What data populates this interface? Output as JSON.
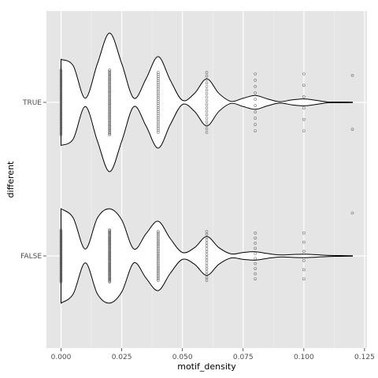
{
  "chart_data": {
    "type": "violin",
    "orientation": "horizontal",
    "xlabel": "motif_density",
    "ylabel": "different",
    "xlim": [
      -0.006,
      0.126
    ],
    "x_ticks": [
      0.0,
      0.025,
      0.05,
      0.075,
      0.1,
      0.125
    ],
    "x_tick_labels": [
      "0.000",
      "0.025",
      "0.050",
      "0.075",
      "0.100",
      "0.125"
    ],
    "categories": [
      "TRUE",
      "FALSE"
    ],
    "grid": true,
    "panel_background": "#e5e5e5",
    "grid_color": "#ffffff",
    "violin_fill": "#ffffff",
    "violin_stroke": "#000000",
    "point_color": "#555555",
    "groups": [
      {
        "category": "TRUE",
        "density_curve": {
          "x": [
            0.0,
            0.005,
            0.01,
            0.015,
            0.02,
            0.025,
            0.03,
            0.035,
            0.04,
            0.045,
            0.05,
            0.055,
            0.06,
            0.065,
            0.07,
            0.075,
            0.08,
            0.085,
            0.09,
            0.095,
            0.1,
            0.105,
            0.11,
            0.115,
            0.12
          ],
          "half_width": [
            0.62,
            0.53,
            0.06,
            0.56,
            1.0,
            0.56,
            0.06,
            0.34,
            0.66,
            0.32,
            0.03,
            0.13,
            0.34,
            0.13,
            0.015,
            0.06,
            0.1,
            0.05,
            0.01,
            0.035,
            0.05,
            0.03,
            0.006,
            0.004,
            0.003
          ]
        },
        "points": [
          {
            "x": 0.0,
            "spread": 0.65,
            "n": 40
          },
          {
            "x": 0.02,
            "spread": 0.65,
            "n": 50
          },
          {
            "x": 0.04,
            "spread": 0.6,
            "n": 30
          },
          {
            "x": 0.06,
            "spread": 0.6,
            "n": 18
          },
          {
            "x": 0.08,
            "spread": 0.57,
            "n": 10
          },
          {
            "x": 0.1,
            "spread": 0.57,
            "n": 6
          },
          {
            "x": 0.12,
            "spread": 0.54,
            "n": 2
          }
        ]
      },
      {
        "category": "FALSE",
        "density_curve": {
          "x": [
            0.0,
            0.005,
            0.01,
            0.015,
            0.02,
            0.025,
            0.03,
            0.035,
            0.04,
            0.045,
            0.05,
            0.055,
            0.06,
            0.065,
            0.07,
            0.075,
            0.08,
            0.085,
            0.09,
            0.095,
            0.1,
            0.105,
            0.11,
            0.115,
            0.12
          ],
          "half_width": [
            0.68,
            0.55,
            0.1,
            0.55,
            0.68,
            0.52,
            0.1,
            0.32,
            0.5,
            0.25,
            0.05,
            0.12,
            0.28,
            0.12,
            0.03,
            0.05,
            0.06,
            0.035,
            0.015,
            0.02,
            0.025,
            0.018,
            0.008,
            0.005,
            0.003
          ]
        },
        "points": [
          {
            "x": 0.0,
            "spread": 0.52,
            "n": 40
          },
          {
            "x": 0.02,
            "spread": 0.52,
            "n": 60
          },
          {
            "x": 0.04,
            "spread": 0.49,
            "n": 30
          },
          {
            "x": 0.06,
            "spread": 0.49,
            "n": 18
          },
          {
            "x": 0.08,
            "spread": 0.46,
            "n": 10
          },
          {
            "x": 0.1,
            "spread": 0.46,
            "n": 6
          },
          {
            "x": 0.12,
            "spread": 0.43,
            "n": 1
          }
        ]
      }
    ]
  }
}
